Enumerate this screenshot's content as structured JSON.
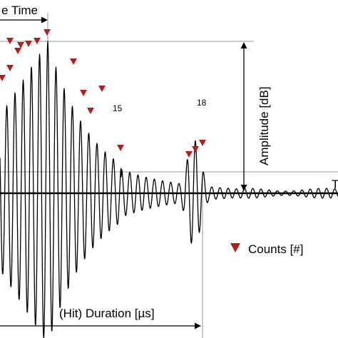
{
  "labels": {
    "rise_time": "e Time",
    "amplitude": "Amplitude  [dB]",
    "duration": "(Hit) Duration  [µs]",
    "counts_legend": "Counts  [#]",
    "threshold_mark": "T",
    "count_15": "15",
    "count_18": "18"
  },
  "colors": {
    "waveform": "#000000",
    "marker": "#b71c1c",
    "guide_lines": "#9a9a9a"
  },
  "icons": {
    "count_marker": "red-down-triangle-icon",
    "arrow": "arrow-head-icon"
  }
}
